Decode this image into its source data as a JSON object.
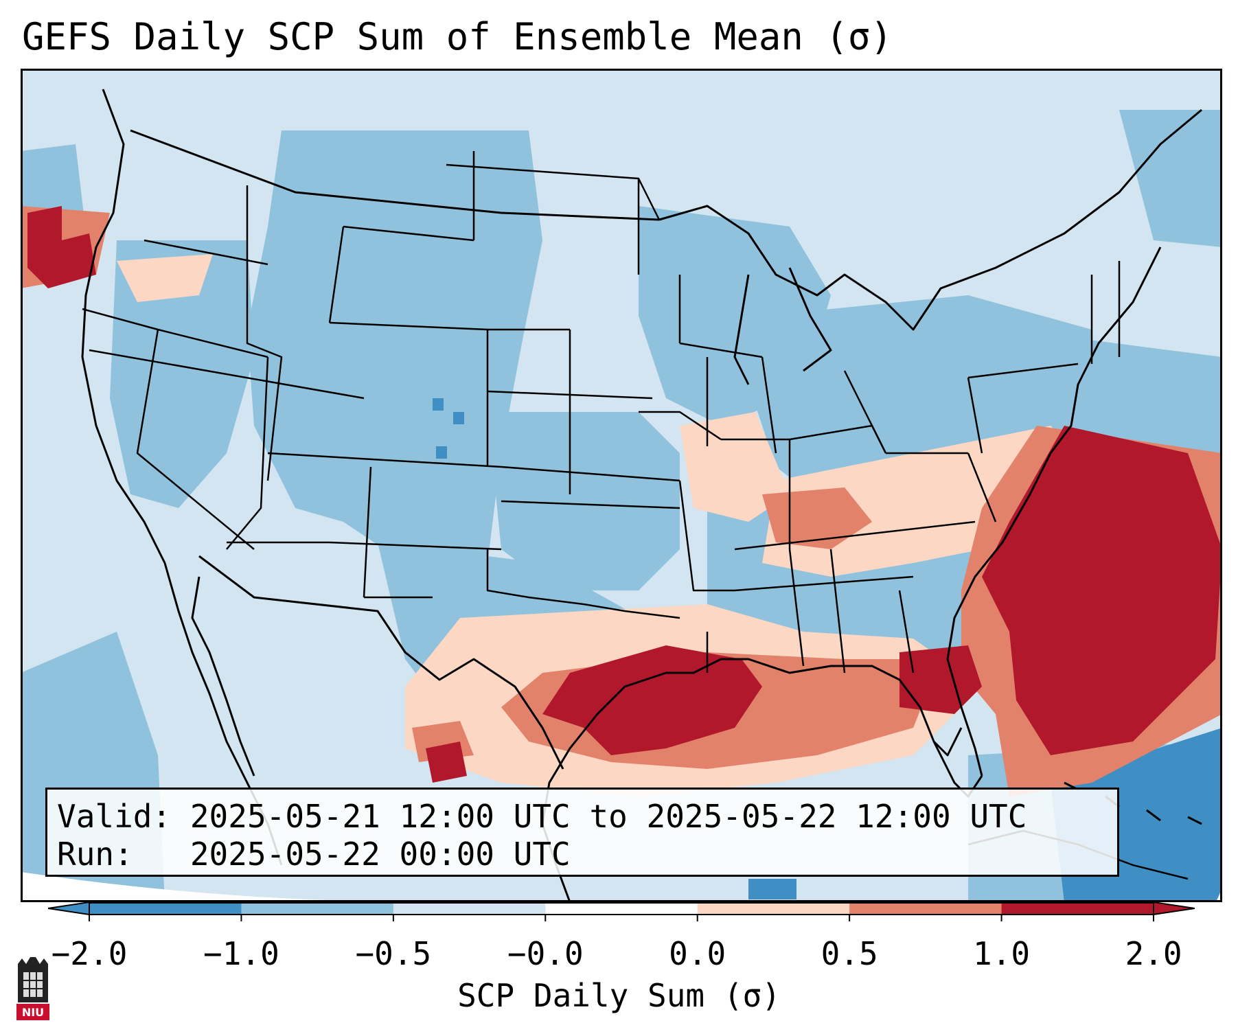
{
  "title": "GEFS Daily SCP Sum of Ensemble Mean (σ)",
  "info": {
    "valid_line": "Valid: 2025-05-21 12:00 UTC to 2025-05-22 12:00 UTC",
    "run_line": "Run:   2025-05-22 00:00 UTC"
  },
  "colorbar": {
    "label": "SCP Daily Sum (σ)",
    "ticks": [
      "−2.0",
      "−1.0",
      "−0.5",
      "−0.0",
      "0.0",
      "0.5",
      "1.0",
      "2.0"
    ],
    "colors": [
      "#3f8fc4",
      "#90c2dd",
      "#d2e5f0",
      "#ffffff",
      "#fbd7c4",
      "#e3826a",
      "#b2182b"
    ],
    "extend": "both"
  },
  "map": {
    "region": "Contiguous United States",
    "background_color": "#d2e5f0",
    "line_color": "#000000"
  },
  "logo": {
    "text": "NIU"
  }
}
